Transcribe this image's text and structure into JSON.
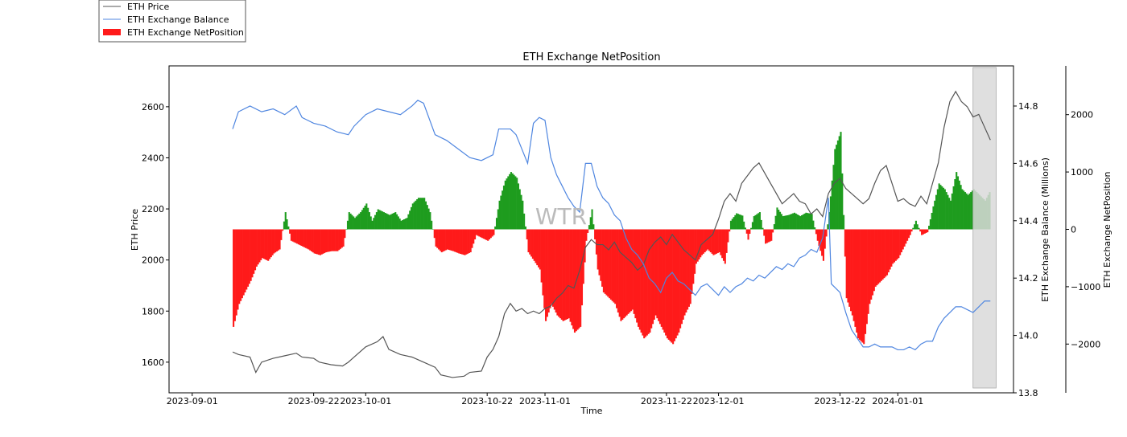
{
  "chart_data": {
    "type": "line",
    "title": "ETH Exchange NetPosition",
    "xlabel": "Time",
    "ylabel_left": "ETH Price",
    "ylabel_right1": "ETH Exchange Balance (Millions)",
    "ylabel_right2": "ETH Exchange NetPosition",
    "watermark": "WTR",
    "legend": [
      {
        "label": "ETH Price",
        "kind": "line",
        "color": "#555555"
      },
      {
        "label": "ETH Exchange Balance",
        "kind": "line",
        "color": "#4f86e0"
      },
      {
        "label": "ETH Exchange NetPosition",
        "kind": "bar",
        "color": "#ff1a1a"
      }
    ],
    "x_range_days": [
      -4,
      142
    ],
    "x_ticks": [
      {
        "label": "2023-09-01",
        "day": 0
      },
      {
        "label": "2023-09-22",
        "day": 21
      },
      {
        "label": "2023-10-01",
        "day": 30
      },
      {
        "label": "2023-10-22",
        "day": 51
      },
      {
        "label": "2023-11-01",
        "day": 61
      },
      {
        "label": "2023-11-22",
        "day": 82
      },
      {
        "label": "2023-12-01",
        "day": 91
      },
      {
        "label": "2023-12-22",
        "day": 112
      },
      {
        "label": "2024-01-01",
        "day": 122
      }
    ],
    "y_price": {
      "range": [
        1480,
        2760
      ],
      "ticks": [
        1600,
        1800,
        2000,
        2200,
        2400,
        2600
      ]
    },
    "y_balance": {
      "range": [
        13.8,
        14.94
      ],
      "ticks": [
        "13.8",
        "14.0",
        "14.2",
        "14.4",
        "14.6",
        "14.8"
      ]
    },
    "y_netpos": {
      "range": [
        -2850,
        2850
      ],
      "ticks": [
        -2000,
        -1000,
        0,
        1000,
        2000
      ]
    },
    "highlight_days": [
      135,
      139
    ],
    "colors": {
      "positive": "#1e9c1e",
      "negative": "#ff1a1a",
      "price": "#555555",
      "balance": "#4f86e0",
      "highlight": "#d9d9d9"
    },
    "price_series": [
      [
        7,
        1640
      ],
      [
        8,
        1630
      ],
      [
        10,
        1620
      ],
      [
        11,
        1560
      ],
      [
        12,
        1600
      ],
      [
        14,
        1615
      ],
      [
        16,
        1625
      ],
      [
        18,
        1635
      ],
      [
        19,
        1620
      ],
      [
        21,
        1615
      ],
      [
        22,
        1600
      ],
      [
        24,
        1590
      ],
      [
        26,
        1585
      ],
      [
        27,
        1600
      ],
      [
        28,
        1620
      ],
      [
        30,
        1660
      ],
      [
        32,
        1680
      ],
      [
        33,
        1700
      ],
      [
        34,
        1650
      ],
      [
        36,
        1630
      ],
      [
        38,
        1620
      ],
      [
        40,
        1600
      ],
      [
        42,
        1580
      ],
      [
        43,
        1550
      ],
      [
        45,
        1540
      ],
      [
        47,
        1545
      ],
      [
        48,
        1560
      ],
      [
        50,
        1565
      ],
      [
        51,
        1620
      ],
      [
        52,
        1650
      ],
      [
        53,
        1700
      ],
      [
        54,
        1790
      ],
      [
        55,
        1830
      ],
      [
        56,
        1800
      ],
      [
        57,
        1810
      ],
      [
        58,
        1790
      ],
      [
        59,
        1800
      ],
      [
        60,
        1790
      ],
      [
        61,
        1810
      ],
      [
        62,
        1820
      ],
      [
        63,
        1850
      ],
      [
        64,
        1870
      ],
      [
        65,
        1900
      ],
      [
        66,
        1890
      ],
      [
        67,
        1960
      ],
      [
        68,
        2050
      ],
      [
        69,
        2080
      ],
      [
        70,
        2060
      ],
      [
        71,
        2060
      ],
      [
        72,
        2040
      ],
      [
        73,
        2070
      ],
      [
        74,
        2030
      ],
      [
        75,
        2010
      ],
      [
        76,
        1990
      ],
      [
        77,
        1960
      ],
      [
        78,
        1980
      ],
      [
        79,
        2040
      ],
      [
        80,
        2070
      ],
      [
        81,
        2090
      ],
      [
        82,
        2060
      ],
      [
        83,
        2100
      ],
      [
        84,
        2070
      ],
      [
        85,
        2040
      ],
      [
        86,
        2020
      ],
      [
        87,
        2000
      ],
      [
        88,
        2060
      ],
      [
        89,
        2080
      ],
      [
        90,
        2100
      ],
      [
        91,
        2160
      ],
      [
        92,
        2230
      ],
      [
        93,
        2260
      ],
      [
        94,
        2230
      ],
      [
        95,
        2300
      ],
      [
        96,
        2330
      ],
      [
        97,
        2360
      ],
      [
        98,
        2380
      ],
      [
        99,
        2340
      ],
      [
        100,
        2300
      ],
      [
        101,
        2260
      ],
      [
        102,
        2220
      ],
      [
        103,
        2240
      ],
      [
        104,
        2260
      ],
      [
        105,
        2230
      ],
      [
        106,
        2220
      ],
      [
        107,
        2180
      ],
      [
        108,
        2200
      ],
      [
        109,
        2170
      ],
      [
        110,
        2260
      ],
      [
        111,
        2300
      ],
      [
        112,
        2320
      ],
      [
        113,
        2280
      ],
      [
        114,
        2260
      ],
      [
        115,
        2240
      ],
      [
        116,
        2220
      ],
      [
        117,
        2240
      ],
      [
        118,
        2300
      ],
      [
        119,
        2350
      ],
      [
        120,
        2370
      ],
      [
        121,
        2300
      ],
      [
        122,
        2230
      ],
      [
        123,
        2240
      ],
      [
        124,
        2220
      ],
      [
        125,
        2210
      ],
      [
        126,
        2250
      ],
      [
        127,
        2220
      ],
      [
        128,
        2300
      ],
      [
        129,
        2380
      ],
      [
        130,
        2520
      ],
      [
        131,
        2620
      ],
      [
        132,
        2660
      ],
      [
        133,
        2620
      ],
      [
        134,
        2600
      ],
      [
        135,
        2560
      ],
      [
        136,
        2570
      ],
      [
        137,
        2520
      ],
      [
        138,
        2470
      ]
    ],
    "balance_series": [
      [
        7,
        14.72
      ],
      [
        8,
        14.78
      ],
      [
        10,
        14.8
      ],
      [
        12,
        14.78
      ],
      [
        14,
        14.79
      ],
      [
        16,
        14.77
      ],
      [
        18,
        14.8
      ],
      [
        19,
        14.76
      ],
      [
        21,
        14.74
      ],
      [
        23,
        14.73
      ],
      [
        25,
        14.71
      ],
      [
        27,
        14.7
      ],
      [
        28,
        14.73
      ],
      [
        30,
        14.77
      ],
      [
        32,
        14.79
      ],
      [
        34,
        14.78
      ],
      [
        36,
        14.77
      ],
      [
        38,
        14.8
      ],
      [
        39,
        14.82
      ],
      [
        40,
        14.81
      ],
      [
        42,
        14.7
      ],
      [
        44,
        14.68
      ],
      [
        46,
        14.65
      ],
      [
        48,
        14.62
      ],
      [
        50,
        14.61
      ],
      [
        52,
        14.63
      ],
      [
        53,
        14.72
      ],
      [
        55,
        14.72
      ],
      [
        56,
        14.7
      ],
      [
        57,
        14.65
      ],
      [
        58,
        14.6
      ],
      [
        59,
        14.74
      ],
      [
        60,
        14.76
      ],
      [
        61,
        14.75
      ],
      [
        62,
        14.62
      ],
      [
        63,
        14.56
      ],
      [
        64,
        14.52
      ],
      [
        65,
        14.48
      ],
      [
        66,
        14.45
      ],
      [
        67,
        14.43
      ],
      [
        68,
        14.6
      ],
      [
        69,
        14.6
      ],
      [
        70,
        14.52
      ],
      [
        71,
        14.48
      ],
      [
        72,
        14.46
      ],
      [
        73,
        14.42
      ],
      [
        74,
        14.4
      ],
      [
        75,
        14.34
      ],
      [
        76,
        14.3
      ],
      [
        77,
        14.28
      ],
      [
        78,
        14.25
      ],
      [
        79,
        14.2
      ],
      [
        80,
        14.18
      ],
      [
        81,
        14.15
      ],
      [
        82,
        14.2
      ],
      [
        83,
        14.22
      ],
      [
        84,
        14.19
      ],
      [
        85,
        14.18
      ],
      [
        86,
        14.16
      ],
      [
        87,
        14.14
      ],
      [
        88,
        14.17
      ],
      [
        89,
        14.18
      ],
      [
        90,
        14.16
      ],
      [
        91,
        14.14
      ],
      [
        92,
        14.17
      ],
      [
        93,
        14.15
      ],
      [
        94,
        14.17
      ],
      [
        95,
        14.18
      ],
      [
        96,
        14.2
      ],
      [
        97,
        14.19
      ],
      [
        98,
        14.21
      ],
      [
        99,
        14.2
      ],
      [
        100,
        14.22
      ],
      [
        101,
        14.24
      ],
      [
        102,
        14.23
      ],
      [
        103,
        14.25
      ],
      [
        104,
        14.24
      ],
      [
        105,
        14.27
      ],
      [
        106,
        14.28
      ],
      [
        107,
        14.3
      ],
      [
        108,
        14.29
      ],
      [
        109,
        14.34
      ],
      [
        110,
        14.48
      ],
      [
        110.5,
        14.18
      ],
      [
        111,
        14.17
      ],
      [
        112,
        14.15
      ],
      [
        113,
        14.08
      ],
      [
        114,
        14.02
      ],
      [
        115,
        13.99
      ],
      [
        116,
        13.96
      ],
      [
        117,
        13.96
      ],
      [
        118,
        13.97
      ],
      [
        119,
        13.96
      ],
      [
        120,
        13.96
      ],
      [
        121,
        13.96
      ],
      [
        122,
        13.95
      ],
      [
        123,
        13.95
      ],
      [
        124,
        13.96
      ],
      [
        125,
        13.95
      ],
      [
        126,
        13.97
      ],
      [
        127,
        13.98
      ],
      [
        128,
        13.98
      ],
      [
        129,
        14.03
      ],
      [
        130,
        14.06
      ],
      [
        131,
        14.08
      ],
      [
        132,
        14.1
      ],
      [
        133,
        14.1
      ],
      [
        134,
        14.09
      ],
      [
        135,
        14.08
      ],
      [
        136,
        14.1
      ],
      [
        137,
        14.12
      ],
      [
        138,
        14.12
      ]
    ],
    "netpos_series": [
      [
        7,
        -1700
      ],
      [
        8,
        -1300
      ],
      [
        9,
        -1100
      ],
      [
        10,
        -900
      ],
      [
        11,
        -650
      ],
      [
        12,
        -500
      ],
      [
        13,
        -550
      ],
      [
        14,
        -420
      ],
      [
        15,
        -350
      ],
      [
        16,
        300
      ],
      [
        17,
        -200
      ],
      [
        18,
        -250
      ],
      [
        19,
        -300
      ],
      [
        20,
        -350
      ],
      [
        21,
        -420
      ],
      [
        22,
        -450
      ],
      [
        23,
        -400
      ],
      [
        24,
        -380
      ],
      [
        25,
        -380
      ],
      [
        26,
        -300
      ],
      [
        27,
        300
      ],
      [
        28,
        200
      ],
      [
        29,
        300
      ],
      [
        30,
        450
      ],
      [
        31,
        150
      ],
      [
        32,
        350
      ],
      [
        33,
        300
      ],
      [
        34,
        250
      ],
      [
        35,
        300
      ],
      [
        36,
        150
      ],
      [
        37,
        200
      ],
      [
        38,
        450
      ],
      [
        39,
        550
      ],
      [
        40,
        550
      ],
      [
        41,
        300
      ],
      [
        42,
        -300
      ],
      [
        43,
        -400
      ],
      [
        44,
        -350
      ],
      [
        45,
        -380
      ],
      [
        46,
        -420
      ],
      [
        47,
        -450
      ],
      [
        48,
        -400
      ],
      [
        49,
        -100
      ],
      [
        50,
        -150
      ],
      [
        51,
        -200
      ],
      [
        52,
        -100
      ],
      [
        53,
        500
      ],
      [
        54,
        850
      ],
      [
        55,
        1000
      ],
      [
        56,
        900
      ],
      [
        57,
        500
      ],
      [
        58,
        -400
      ],
      [
        59,
        -550
      ],
      [
        60,
        -700
      ],
      [
        61,
        -1600
      ],
      [
        62,
        -1300
      ],
      [
        63,
        -1500
      ],
      [
        64,
        -1600
      ],
      [
        65,
        -1550
      ],
      [
        66,
        -1800
      ],
      [
        67,
        -1700
      ],
      [
        68,
        -200
      ],
      [
        69,
        350
      ],
      [
        70,
        -700
      ],
      [
        71,
        -1100
      ],
      [
        72,
        -1200
      ],
      [
        73,
        -1300
      ],
      [
        74,
        -1600
      ],
      [
        75,
        -1500
      ],
      [
        76,
        -1400
      ],
      [
        77,
        -1700
      ],
      [
        78,
        -1900
      ],
      [
        79,
        -1800
      ],
      [
        80,
        -1500
      ],
      [
        81,
        -1700
      ],
      [
        82,
        -1900
      ],
      [
        83,
        -2000
      ],
      [
        84,
        -1800
      ],
      [
        85,
        -1500
      ],
      [
        86,
        -1300
      ],
      [
        87,
        -600
      ],
      [
        88,
        -450
      ],
      [
        89,
        -350
      ],
      [
        90,
        -450
      ],
      [
        91,
        -400
      ],
      [
        92,
        -600
      ],
      [
        93,
        150
      ],
      [
        94,
        280
      ],
      [
        95,
        240
      ],
      [
        96,
        -180
      ],
      [
        97,
        230
      ],
      [
        98,
        300
      ],
      [
        99,
        -250
      ],
      [
        100,
        -200
      ],
      [
        101,
        380
      ],
      [
        102,
        230
      ],
      [
        103,
        250
      ],
      [
        104,
        290
      ],
      [
        105,
        230
      ],
      [
        106,
        290
      ],
      [
        107,
        270
      ],
      [
        108,
        -200
      ],
      [
        109,
        -550
      ],
      [
        110,
        300
      ],
      [
        111,
        1400
      ],
      [
        112,
        1700
      ],
      [
        113,
        -1200
      ],
      [
        114,
        -1500
      ],
      [
        115,
        -1900
      ],
      [
        116,
        -2000
      ],
      [
        117,
        -1300
      ],
      [
        118,
        -1000
      ],
      [
        119,
        -900
      ],
      [
        120,
        -800
      ],
      [
        121,
        -600
      ],
      [
        122,
        -500
      ],
      [
        123,
        -300
      ],
      [
        124,
        -100
      ],
      [
        125,
        150
      ],
      [
        126,
        -100
      ],
      [
        127,
        -50
      ],
      [
        128,
        400
      ],
      [
        129,
        800
      ],
      [
        130,
        700
      ],
      [
        131,
        500
      ],
      [
        132,
        1000
      ],
      [
        133,
        700
      ],
      [
        134,
        600
      ],
      [
        135,
        700
      ],
      [
        136,
        600
      ],
      [
        137,
        500
      ],
      [
        138,
        700
      ]
    ]
  }
}
